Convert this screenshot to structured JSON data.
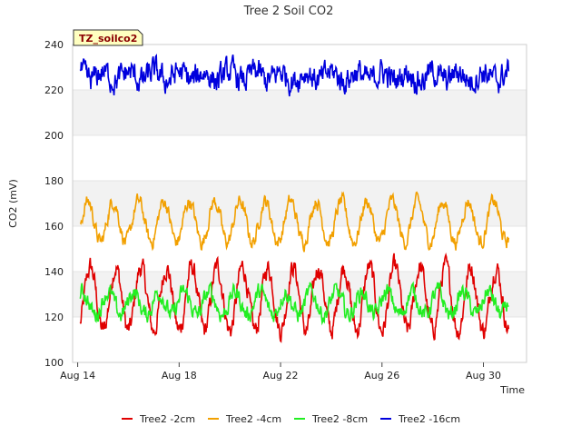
{
  "chart_data": {
    "type": "line",
    "title": "Tree 2 Soil CO2",
    "badge": "TZ_soilco2",
    "xlabel": "Time",
    "ylabel": "CO2 (mV)",
    "ylim": [
      100,
      240
    ],
    "yticks": [
      100,
      120,
      140,
      160,
      180,
      200,
      220,
      240
    ],
    "xrange_days": [
      13.8,
      31.7
    ],
    "xticks": [
      {
        "day": 14,
        "label": "Aug 14"
      },
      {
        "day": 18,
        "label": "Aug 18"
      },
      {
        "day": 22,
        "label": "Aug 22"
      },
      {
        "day": 26,
        "label": "Aug 26"
      },
      {
        "day": 30,
        "label": "Aug 30"
      }
    ],
    "bands": [
      [
        120,
        140
      ],
      [
        160,
        180
      ],
      [
        200,
        220
      ]
    ],
    "grid": true,
    "legend_position": "bottom",
    "series": [
      {
        "name": "Tree2 -2cm",
        "color": "#e00000",
        "mean": 128,
        "amp": 14,
        "noise": 3.5,
        "phase": 0.0,
        "start": 14.1,
        "end": 31.0
      },
      {
        "name": "Tree2 -4cm",
        "color": "#f2a000",
        "mean": 162,
        "amp": 9,
        "noise": 2.5,
        "phase": 0.1,
        "start": 14.1,
        "end": 31.0
      },
      {
        "name": "Tree2 -8cm",
        "color": "#22ee22",
        "mean": 126,
        "amp": 5,
        "noise": 3.0,
        "phase": 0.3,
        "start": 14.1,
        "end": 31.0
      },
      {
        "name": "Tree2 -16cm",
        "color": "#0000dd",
        "mean": 226,
        "amp": 2,
        "noise": 4.5,
        "phase": 0.5,
        "start": 14.1,
        "end": 31.0
      }
    ]
  }
}
